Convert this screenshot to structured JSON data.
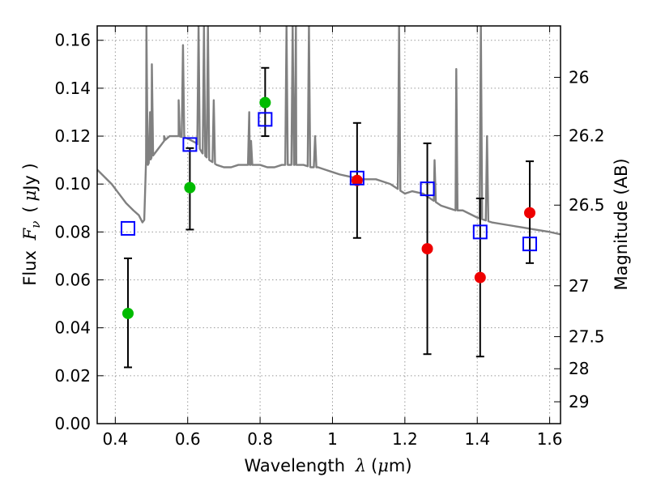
{
  "chart_data": {
    "type": "scatter",
    "title": "",
    "xlabel": "Wavelength",
    "xlabel_symbol": "λ",
    "xlabel_unit_open": "(",
    "xlabel_unit_mu": "μ",
    "xlabel_unit_rest": "m)",
    "ylabel": "Flux",
    "ylabel_symbol": "F",
    "ylabel_symbol_sub": "ν",
    "ylabel_unit_open": "(",
    "ylabel_unit_mu": "μ",
    "ylabel_unit_rest": "Jy )",
    "y2label": "Magnitude (AB)",
    "xlim": [
      0.35,
      1.63
    ],
    "ylim": [
      0.0,
      0.166
    ],
    "grid": true,
    "x_ticks": [
      0.4,
      0.6,
      0.8,
      1.0,
      1.2,
      1.4,
      1.6
    ],
    "x_tick_labels": [
      "0.4",
      "0.6",
      "0.8",
      "1",
      "1.2",
      "1.4",
      "1.6"
    ],
    "y_ticks": [
      0.0,
      0.02,
      0.04,
      0.06,
      0.08,
      0.1,
      0.12,
      0.14,
      0.16
    ],
    "y_tick_labels": [
      "0.00",
      "0.02",
      "0.04",
      "0.06",
      "0.08",
      "0.10",
      "0.12",
      "0.14",
      "0.16"
    ],
    "y2_ticks": [
      {
        "label": "26",
        "value": 26.0
      },
      {
        "label": "26.2",
        "value": 26.2
      },
      {
        "label": "26.5",
        "value": 26.5
      },
      {
        "label": "27",
        "value": 27.0
      },
      {
        "label": "27.5",
        "value": 27.5
      },
      {
        "label": "28",
        "value": 28.0
      },
      {
        "label": "29",
        "value": 29.0
      }
    ],
    "colors": {
      "green": "#00bb00",
      "red": "#ee0000",
      "blue": "#0000ff",
      "model": "#808080",
      "errorbar": "#000000",
      "grid": "#999999"
    },
    "series": [
      {
        "marker": "circle",
        "color": "green",
        "points": [
          {
            "x": 0.435,
            "y": 0.046,
            "yerr_low": 0.0235,
            "yerr_high": 0.069
          },
          {
            "x": 0.606,
            "y": 0.0985,
            "yerr_low": 0.081,
            "yerr_high": 0.115
          },
          {
            "x": 0.814,
            "y": 0.134,
            "yerr_low": 0.12,
            "yerr_high": 0.1485
          }
        ]
      },
      {
        "marker": "circle",
        "color": "red",
        "points": [
          {
            "x": 1.068,
            "y": 0.1015,
            "yerr_low": 0.0775,
            "yerr_high": 0.1255
          },
          {
            "x": 1.262,
            "y": 0.073,
            "yerr_low": 0.029,
            "yerr_high": 0.117
          },
          {
            "x": 1.408,
            "y": 0.061,
            "yerr_low": 0.028,
            "yerr_high": 0.094
          },
          {
            "x": 1.545,
            "y": 0.088,
            "yerr_low": 0.067,
            "yerr_high": 0.1095
          }
        ]
      },
      {
        "marker": "square",
        "color": "blue",
        "points": [
          {
            "x": 0.435,
            "y": 0.0815
          },
          {
            "x": 0.606,
            "y": 0.1165
          },
          {
            "x": 0.814,
            "y": 0.127
          },
          {
            "x": 1.068,
            "y": 0.1025
          },
          {
            "x": 1.262,
            "y": 0.098
          },
          {
            "x": 1.408,
            "y": 0.08
          },
          {
            "x": 1.545,
            "y": 0.075
          }
        ]
      }
    ],
    "model_spectrum": {
      "color": "model",
      "x": [
        0.35,
        0.37,
        0.39,
        0.41,
        0.43,
        0.45,
        0.465,
        0.475,
        0.48,
        0.485,
        0.49,
        0.5,
        0.52,
        0.535,
        0.55,
        0.575,
        0.6,
        0.625,
        0.64,
        0.66,
        0.68,
        0.7,
        0.72,
        0.74,
        0.76,
        0.78,
        0.8,
        0.82,
        0.84,
        0.86,
        0.88,
        0.9,
        0.92,
        0.94,
        0.96,
        0.98,
        1.0,
        1.02,
        1.05,
        1.08,
        1.1,
        1.12,
        1.14,
        1.16,
        1.18,
        1.2,
        1.22,
        1.25,
        1.28,
        1.3,
        1.32,
        1.34,
        1.36,
        1.4,
        1.44,
        1.48,
        1.52,
        1.56,
        1.6,
        1.63
      ],
      "y": [
        0.106,
        0.103,
        0.1,
        0.096,
        0.092,
        0.089,
        0.087,
        0.084,
        0.085,
        0.11,
        0.108,
        0.111,
        0.115,
        0.118,
        0.12,
        0.12,
        0.119,
        0.117,
        0.113,
        0.11,
        0.108,
        0.107,
        0.107,
        0.108,
        0.108,
        0.108,
        0.108,
        0.107,
        0.107,
        0.108,
        0.108,
        0.108,
        0.108,
        0.107,
        0.107,
        0.106,
        0.105,
        0.104,
        0.103,
        0.102,
        0.102,
        0.102,
        0.101,
        0.1,
        0.098,
        0.096,
        0.097,
        0.096,
        0.093,
        0.091,
        0.09,
        0.089,
        0.089,
        0.086,
        0.084,
        0.083,
        0.082,
        0.081,
        0.08,
        0.079
      ],
      "emission_lines": [
        {
          "x": 0.486,
          "peak": 0.166
        },
        {
          "x": 0.496,
          "peak": 0.13
        },
        {
          "x": 0.501,
          "peak": 0.15
        },
        {
          "x": 0.535,
          "peak": 0.12
        },
        {
          "x": 0.575,
          "peak": 0.135
        },
        {
          "x": 0.587,
          "peak": 0.158
        },
        {
          "x": 0.63,
          "peak": 0.166
        },
        {
          "x": 0.645,
          "peak": 0.166
        },
        {
          "x": 0.656,
          "peak": 0.166
        },
        {
          "x": 0.672,
          "peak": 0.135
        },
        {
          "x": 0.77,
          "peak": 0.13
        },
        {
          "x": 0.775,
          "peak": 0.118
        },
        {
          "x": 0.873,
          "peak": 0.166
        },
        {
          "x": 0.89,
          "peak": 0.166
        },
        {
          "x": 0.899,
          "peak": 0.166
        },
        {
          "x": 0.935,
          "peak": 0.166
        },
        {
          "x": 0.952,
          "peak": 0.12
        },
        {
          "x": 1.184,
          "peak": 0.166
        },
        {
          "x": 1.282,
          "peak": 0.11
        },
        {
          "x": 1.342,
          "peak": 0.148
        },
        {
          "x": 1.41,
          "peak": 0.166
        },
        {
          "x": 1.427,
          "peak": 0.12
        }
      ]
    }
  }
}
